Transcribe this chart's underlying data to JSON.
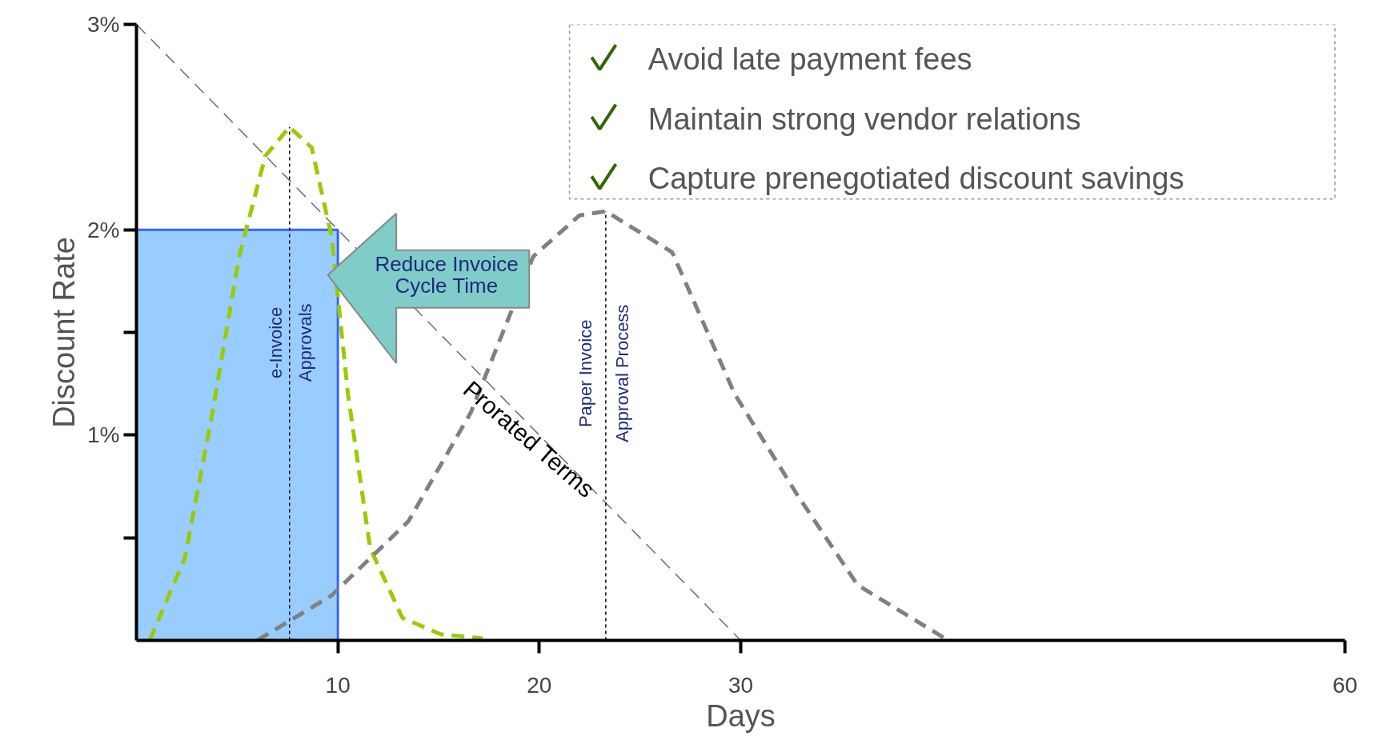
{
  "chart_data": {
    "type": "line",
    "xlabel": "Days",
    "ylabel": "Discount Rate",
    "xlim": [
      0,
      60
    ],
    "ylim": [
      0,
      3
    ],
    "xticks": [
      10,
      20,
      30,
      60
    ],
    "yticks": [
      {
        "value": 0.5,
        "label": null
      },
      {
        "value": 1,
        "label": "1%"
      },
      {
        "value": 1.5,
        "label": null
      },
      {
        "value": 2,
        "label": "2%"
      },
      {
        "value": 3,
        "label": "3%"
      }
    ],
    "grid": false,
    "marker": "none",
    "series": [
      {
        "type": "area",
        "color": "#99ccff",
        "x": [
          0,
          10
        ],
        "values": [
          2,
          2
        ]
      },
      {
        "color": "#99cc00",
        "line_style": "dashed",
        "x": [
          0.65,
          2.4,
          3.7,
          5.1,
          6.4,
          7.6,
          8.7,
          9.7,
          10.5,
          11.6,
          13.2,
          15.1,
          17.2
        ],
        "values": [
          0,
          0.4,
          1.07,
          1.87,
          2.36,
          2.5,
          2.4,
          1.96,
          1.2,
          0.45,
          0.11,
          0.03,
          0.01
        ]
      },
      {
        "color": "#808080",
        "line_style": "dashed",
        "x": [
          6.0,
          9.7,
          13.5,
          16.6,
          19.7,
          22,
          23.3,
          26.6,
          29.7,
          32.8,
          35.8,
          40.3
        ],
        "values": [
          0,
          0.22,
          0.58,
          1.11,
          1.87,
          2.07,
          2.09,
          1.89,
          1.2,
          0.71,
          0.27,
          0
        ]
      },
      {
        "color": "#666699",
        "line_style": "dashed",
        "x": [
          0,
          30
        ],
        "values": [
          3,
          0
        ]
      },
      {
        "color": "#000000",
        "line_style": "dotted",
        "x": [
          7.6,
          7.6
        ],
        "values": [
          0,
          2.5
        ]
      },
      {
        "color": "#000000",
        "line_style": "dotted",
        "x": [
          23.3,
          23.3
        ],
        "values": [
          0,
          2.09
        ]
      }
    ],
    "annotations": [
      "e-Invoice",
      "Approvals",
      "Paper Invoice",
      "Approval Process",
      "Prorated Terms",
      "Reduce Invoice\nCycle Time",
      "Avoid late payment fees",
      "Maintain strong vendor relations",
      "Capture prenegotiated discount savings"
    ]
  }
}
